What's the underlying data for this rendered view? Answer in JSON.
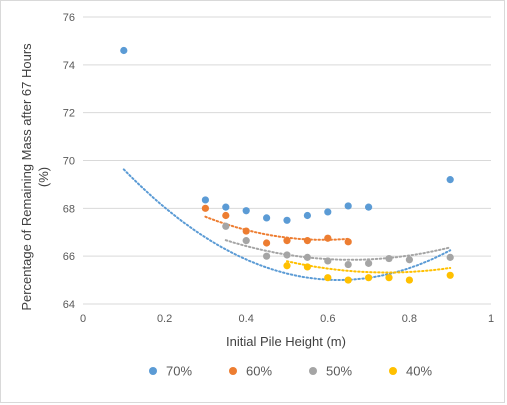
{
  "chart_data": {
    "type": "scatter",
    "title": "",
    "xlabel": "Initial Pile Height (m)",
    "ylabel": "Percentage of Remaining Mass after 67 Hours (%)",
    "ylabel_lines": [
      "Percentage of Remaining Mass after 67 Hours",
      "(%)"
    ],
    "xlim": [
      0,
      1
    ],
    "ylim": [
      64,
      76
    ],
    "x_ticks": [
      0,
      0.2,
      0.4,
      0.6,
      0.8,
      1
    ],
    "x_tick_labels": [
      "0",
      "0.2",
      "0.4",
      "0.6",
      "0.8",
      "1"
    ],
    "y_ticks": [
      64,
      66,
      68,
      70,
      72,
      74,
      76
    ],
    "y_tick_labels": [
      "64",
      "66",
      "68",
      "70",
      "72",
      "74",
      "76"
    ],
    "grid": "horizontal",
    "legend_position": "bottom",
    "trendline": "polynomial order 2 (dotted)",
    "series": [
      {
        "name": "70%",
        "color": "#5B9BD5",
        "x": [
          0.1,
          0.3,
          0.35,
          0.4,
          0.45,
          0.5,
          0.55,
          0.6,
          0.65,
          0.7,
          0.9
        ],
        "y": [
          74.6,
          68.35,
          68.05,
          67.9,
          67.6,
          67.5,
          67.7,
          67.85,
          68.1,
          68.05,
          69.2
        ],
        "trend": [
          71.55,
          -20.88,
          16.65
        ],
        "trend_range": [
          0.1,
          0.9
        ]
      },
      {
        "name": "60%",
        "color": "#ED7D31",
        "x": [
          0.3,
          0.35,
          0.4,
          0.45,
          0.5,
          0.55,
          0.6,
          0.65
        ],
        "y": [
          68.0,
          67.7,
          67.05,
          66.55,
          66.65,
          66.65,
          66.75,
          66.6
        ],
        "trend": [
          70.69,
          -13.6,
          11.54
        ],
        "trend_range": [
          0.3,
          0.65
        ]
      },
      {
        "name": "50%",
        "color": "#A5A5A5",
        "x": [
          0.35,
          0.4,
          0.45,
          0.5,
          0.55,
          0.6,
          0.65,
          0.7,
          0.75,
          0.8,
          0.9
        ],
        "y": [
          67.25,
          66.65,
          66.0,
          66.05,
          65.95,
          65.8,
          65.65,
          65.7,
          65.9,
          65.85,
          65.95
        ],
        "trend": [
          69.61,
          -11.46,
          8.73
        ],
        "trend_range": [
          0.35,
          0.9
        ]
      },
      {
        "name": "40%",
        "color": "#FFC000",
        "x": [
          0.5,
          0.55,
          0.6,
          0.65,
          0.7,
          0.75,
          0.8,
          0.9
        ],
        "y": [
          65.6,
          65.55,
          65.1,
          65.0,
          65.1,
          65.1,
          65.0,
          65.2
        ],
        "trend": [
          69.68,
          -11.72,
          7.87
        ],
        "trend_range": [
          0.5,
          0.9
        ]
      }
    ]
  }
}
